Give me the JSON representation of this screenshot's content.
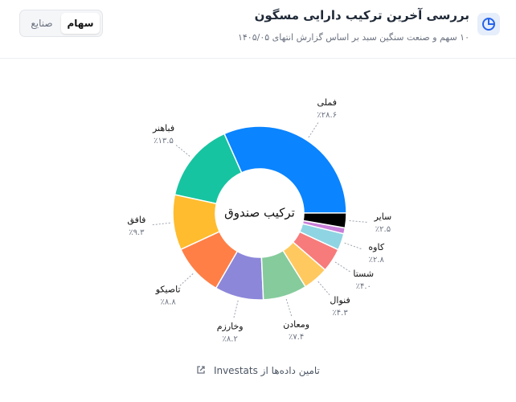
{
  "header": {
    "title": "بررسی آخرین ترکیب دارایی مسگون",
    "subtitle": "۱۰ سهم و صنعت سنگین سبد بر اساس گزارش انتهای ۱۴۰۵/۰۵"
  },
  "tabs": [
    "صنایع",
    "سهام"
  ],
  "chart_data": {
    "type": "pie",
    "center_label": "ترکیب صندوق",
    "categories": [
      "فملی",
      "سایر",
      null,
      "کاوه",
      "شستا",
      "فنوال",
      "ومعادن",
      "وخارزم",
      "تاصیکو",
      "فافق",
      "فباهنر"
    ],
    "values": [
      28.6,
      2.5,
      1.0,
      2.8,
      4.0,
      4.3,
      7.4,
      8.2,
      8.8,
      9.3,
      13.5
    ],
    "value_labels": [
      "٪۲۸.۶",
      "٪۲.۵",
      null,
      "٪۲.۸",
      "٪۴.۰",
      "٪۴.۳",
      "٪۷.۴",
      "٪۸.۲",
      "٪۸.۸",
      "٪۹.۳",
      "٪۱۳.۵"
    ],
    "colors": [
      "#0a84ff",
      "#000000",
      "#c97fd8",
      "#8fd4e2",
      "#f77b7b",
      "#ffc95f",
      "#86cb9c",
      "#8c87d9",
      "#ff7f47",
      "#ffbc2e",
      "#17c4a1"
    ]
  },
  "footer": {
    "source": "تامین داده‌ها از Investats"
  }
}
